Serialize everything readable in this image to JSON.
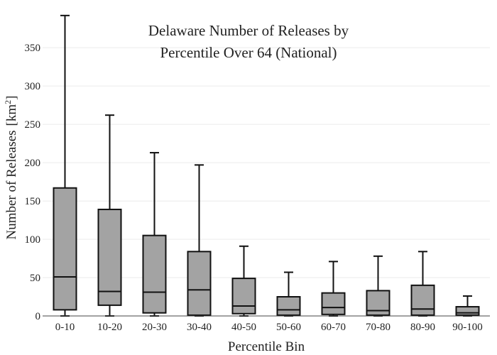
{
  "chart_data": {
    "type": "box",
    "title_lines": [
      "Delaware Number of Releases by",
      "Percentile Over 64 (National)"
    ],
    "xlabel": "Percentile Bin",
    "ylabel": "Number of Releases",
    "ylabel_unit_base": "km",
    "ylabel_unit_exp": "2",
    "ylim": [
      0,
      390
    ],
    "yticks": [
      0,
      50,
      100,
      150,
      200,
      250,
      300,
      350
    ],
    "grid": true,
    "colors": {
      "box_fill": "#a3a3a3",
      "box_stroke": "#111111",
      "grid": "#ebebeb",
      "axis": "#444444"
    },
    "categories": [
      "0-10",
      "10-20",
      "20-30",
      "30-40",
      "40-50",
      "50-60",
      "60-70",
      "70-80",
      "80-90",
      "90-100"
    ],
    "boxes": [
      {
        "whisker_low": 0,
        "q1": 8,
        "median": 51,
        "q3": 167,
        "whisker_high": 392
      },
      {
        "whisker_low": 0,
        "q1": 14,
        "median": 32,
        "q3": 139,
        "whisker_high": 262
      },
      {
        "whisker_low": 0,
        "q1": 4,
        "median": 31,
        "q3": 105,
        "whisker_high": 213
      },
      {
        "whisker_low": 0,
        "q1": 1,
        "median": 34,
        "q3": 84,
        "whisker_high": 197
      },
      {
        "whisker_low": 0,
        "q1": 3,
        "median": 13,
        "q3": 49,
        "whisker_high": 91
      },
      {
        "whisker_low": 0,
        "q1": 1,
        "median": 8,
        "q3": 25,
        "whisker_high": 57
      },
      {
        "whisker_low": 0,
        "q1": 2,
        "median": 11,
        "q3": 30,
        "whisker_high": 71
      },
      {
        "whisker_low": 0,
        "q1": 1,
        "median": 7,
        "q3": 33,
        "whisker_high": 78
      },
      {
        "whisker_low": 0,
        "q1": 1,
        "median": 9,
        "q3": 40,
        "whisker_high": 84
      },
      {
        "whisker_low": 0,
        "q1": 1,
        "median": 4,
        "q3": 12,
        "whisker_high": 26
      }
    ]
  }
}
